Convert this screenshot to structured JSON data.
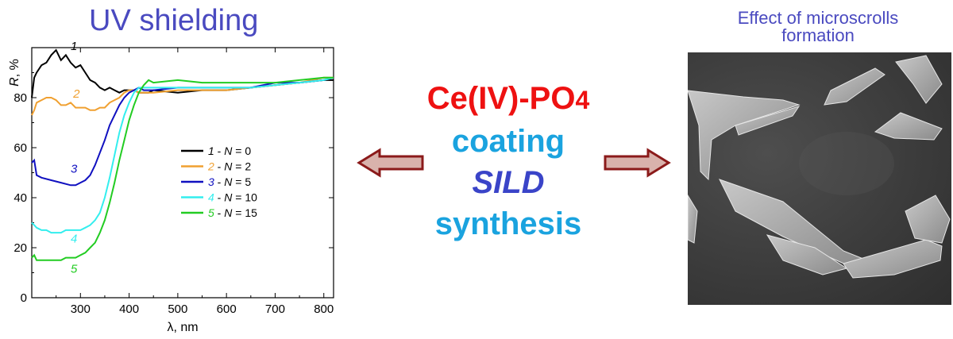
{
  "left_title": "UV shielding",
  "right_title_line1": "Effect of microscrolls",
  "right_title_line2": "formation",
  "center": {
    "formula_main": "Ce(IV)-PO",
    "formula_sub": "4",
    "line2": "coating",
    "line3": "SILD",
    "line4": "synthesis"
  },
  "colors": {
    "title": "#4a4ac0",
    "formula": "#ee1111",
    "coating": "#1aa3df",
    "sild": "#3a44c8",
    "arrow_fill": "#d9b2ac",
    "arrow_stroke": "#8b1a1a"
  },
  "image_alt_name": "sem-micrograph-microscrolls",
  "chart_data": {
    "type": "line",
    "title": "UV shielding",
    "xlabel": "λ, nm",
    "ylabel_italic": "R",
    "ylabel_rest": ", %",
    "xlim": [
      200,
      820
    ],
    "ylim": [
      0,
      100
    ],
    "xticks": [
      300,
      400,
      500,
      600,
      700,
      800
    ],
    "yticks": [
      0,
      20,
      40,
      60,
      80
    ],
    "legend": [
      {
        "num": "1",
        "sep": " - ",
        "var": "N",
        "eq": " = 0"
      },
      {
        "num": "2",
        "sep": " - ",
        "var": "N",
        "eq": " = 2"
      },
      {
        "num": "3",
        "sep": " - ",
        "var": "N",
        "eq": " = 5"
      },
      {
        "num": "4",
        "sep": " - ",
        "var": "N",
        "eq": " = 10"
      },
      {
        "num": "5",
        "sep": " - ",
        "var": "N",
        "eq": " = 15"
      }
    ],
    "series": [
      {
        "name": "1",
        "color": "#000000",
        "label": "1",
        "label_at": [
          280,
          99
        ],
        "x": [
          200,
          205,
          210,
          220,
          230,
          240,
          250,
          260,
          270,
          280,
          290,
          300,
          310,
          320,
          330,
          340,
          350,
          360,
          370,
          380,
          390,
          400,
          410,
          420,
          430,
          440,
          450,
          500,
          550,
          600,
          650,
          700,
          750,
          800,
          820
        ],
        "y": [
          80,
          88,
          90,
          93,
          94,
          97,
          99,
          95,
          97,
          94,
          92,
          93,
          90,
          87,
          86,
          84,
          83,
          84,
          83,
          82,
          83,
          83,
          83,
          82,
          82,
          82,
          83,
          82,
          83,
          83,
          84,
          85,
          86,
          87,
          87
        ]
      },
      {
        "name": "2",
        "color": "#f0a030",
        "label": "2",
        "label_at": [
          285,
          80
        ],
        "x": [
          200,
          205,
          210,
          220,
          230,
          240,
          250,
          260,
          270,
          280,
          290,
          300,
          310,
          320,
          330,
          340,
          350,
          360,
          370,
          380,
          390,
          400,
          410,
          420,
          430,
          440,
          450,
          500,
          550,
          600,
          650,
          700,
          750,
          800,
          820
        ],
        "y": [
          73,
          75,
          78,
          79,
          80,
          80,
          79,
          77,
          77,
          78,
          76,
          76,
          76,
          75,
          75,
          76,
          76,
          78,
          79,
          80,
          82,
          83,
          83,
          82,
          82,
          82,
          82,
          83,
          83,
          83,
          84,
          85,
          86,
          88,
          88
        ]
      },
      {
        "name": "3",
        "color": "#1010c0",
        "label": "3",
        "label_at": [
          280,
          50
        ],
        "x": [
          200,
          205,
          210,
          220,
          240,
          260,
          280,
          290,
          300,
          310,
          320,
          330,
          340,
          350,
          360,
          370,
          380,
          390,
          400,
          410,
          420,
          430,
          450,
          500,
          550,
          600,
          650,
          700,
          750,
          800,
          820
        ],
        "y": [
          54,
          55,
          49,
          48,
          47,
          46,
          45,
          45,
          46,
          47,
          49,
          53,
          58,
          63,
          69,
          73,
          77,
          80,
          82,
          83,
          84,
          83,
          83,
          84,
          84,
          84,
          84,
          86,
          86,
          87,
          88
        ]
      },
      {
        "name": "4",
        "color": "#33eeee",
        "label": "4",
        "label_at": [
          280,
          22
        ],
        "x": [
          200,
          205,
          210,
          220,
          230,
          240,
          250,
          260,
          270,
          280,
          290,
          300,
          310,
          320,
          330,
          340,
          350,
          360,
          370,
          380,
          390,
          400,
          410,
          420,
          430,
          450,
          500,
          550,
          600,
          650,
          700,
          750,
          800,
          820
        ],
        "y": [
          30,
          29,
          28,
          27,
          27,
          26,
          26,
          26,
          27,
          27,
          27,
          27,
          28,
          29,
          31,
          34,
          40,
          48,
          57,
          66,
          73,
          78,
          82,
          84,
          84,
          84,
          84,
          84,
          84,
          84,
          85,
          86,
          87,
          88
        ]
      },
      {
        "name": "5",
        "color": "#22cc22",
        "label": "5",
        "label_at": [
          280,
          10
        ],
        "x": [
          200,
          205,
          210,
          220,
          230,
          240,
          250,
          260,
          270,
          280,
          290,
          300,
          310,
          320,
          330,
          340,
          350,
          360,
          370,
          380,
          390,
          400,
          410,
          420,
          430,
          440,
          450,
          500,
          550,
          600,
          650,
          700,
          750,
          800,
          820
        ],
        "y": [
          16,
          17,
          15,
          15,
          15,
          15,
          15,
          15,
          16,
          16,
          16,
          17,
          18,
          20,
          22,
          26,
          31,
          38,
          46,
          55,
          63,
          71,
          77,
          82,
          85,
          87,
          86,
          87,
          86,
          86,
          86,
          86,
          87,
          88,
          88
        ]
      }
    ]
  }
}
